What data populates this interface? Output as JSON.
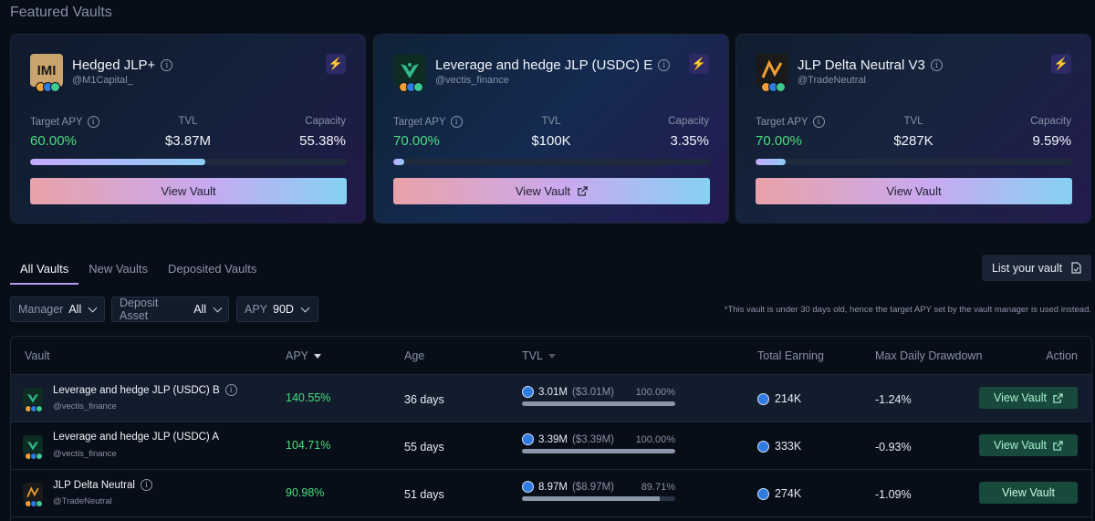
{
  "section_title": "Featured Vaults",
  "featured": [
    {
      "name": "Hedged JLP+",
      "handle": "@M1Capital_",
      "logo_text": "IMI",
      "apy_label": "Target APY",
      "tvl_label": "TVL",
      "capacity_label": "Capacity",
      "apy": "60.00%",
      "tvl": "$3.87M",
      "capacity": "55.38%",
      "capacity_fraction": 0.5538,
      "button": "View Vault",
      "external": false
    },
    {
      "name": "Leverage and hedge JLP (USDC) E",
      "handle": "@vectis_finance",
      "logo_text": "",
      "apy_label": "Target APY",
      "tvl_label": "TVL",
      "capacity_label": "Capacity",
      "apy": "70.00%",
      "tvl": "$100K",
      "capacity": "3.35%",
      "capacity_fraction": 0.0335,
      "button": "View Vault",
      "external": true
    },
    {
      "name": "JLP Delta Neutral V3",
      "handle": "@TradeNeutral",
      "logo_text": "",
      "apy_label": "Target APY",
      "tvl_label": "TVL",
      "capacity_label": "Capacity",
      "apy": "70.00%",
      "tvl": "$287K",
      "capacity": "9.59%",
      "capacity_fraction": 0.0959,
      "button": "View Vault",
      "external": false
    }
  ],
  "tabs": [
    "All Vaults",
    "New Vaults",
    "Deposited Vaults"
  ],
  "list_button": "List your vault",
  "filters": {
    "manager": {
      "label": "Manager",
      "value": "All"
    },
    "asset": {
      "label": "Deposit Asset",
      "value": "All"
    },
    "apy": {
      "label": "APY",
      "value": "90D"
    }
  },
  "footnote": "*This vault is under 30 days old, hence the target APY set by the vault manager is used instead.",
  "table": {
    "headers": {
      "vault": "Vault",
      "apy": "APY",
      "age": "Age",
      "tvl": "TVL",
      "earning": "Total Earning",
      "drawdown": "Max Daily Drawdown",
      "action": "Action"
    },
    "rows": [
      {
        "name": "Leverage and hedge JLP (USDC) B",
        "handle": "@vectis_finance",
        "apy": "140.55%",
        "age": "36 days",
        "tvl": "3.01M",
        "tvl_usd": "($3.01M)",
        "tvl_pct": "100.00%",
        "tvl_fraction": 1.0,
        "earning": "214K",
        "drawdown": "-1.24%",
        "button": "View Vault"
      },
      {
        "name": "Leverage and hedge JLP (USDC) A",
        "handle": "@vectis_finance",
        "apy": "104.71%",
        "age": "55 days",
        "tvl": "3.39M",
        "tvl_usd": "($3.39M)",
        "tvl_pct": "100.00%",
        "tvl_fraction": 1.0,
        "earning": "333K",
        "drawdown": "-0.93%",
        "button": "View Vault"
      },
      {
        "name": "JLP Delta Neutral",
        "handle": "@TradeNeutral",
        "apy": "90.98%",
        "age": "51 days",
        "tvl": "8.97M",
        "tvl_usd": "($8.97M)",
        "tvl_pct": "89.71%",
        "tvl_fraction": 0.8971,
        "earning": "274K",
        "drawdown": "-1.09%",
        "button": "View Vault"
      }
    ]
  },
  "colors": {
    "accent_green": "#4ade80",
    "bolt_purple": "#a78bfa",
    "button_green": "#174a3c"
  }
}
